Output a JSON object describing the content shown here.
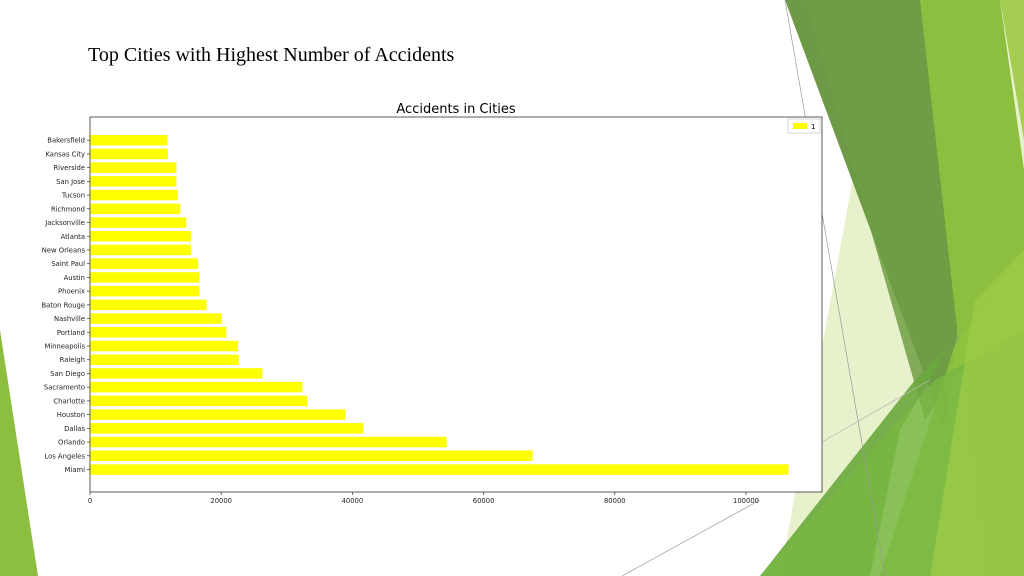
{
  "slide": {
    "title": "Top Cities with Highest Number of Accidents"
  },
  "theme": {
    "bar_color": "#ffff00",
    "green_dark": "#5e8f34",
    "green_mid": "#76b33f",
    "green_light": "#9bc94a",
    "green_pale": "#d6e8a8"
  },
  "chart_data": {
    "type": "bar",
    "orientation": "horizontal",
    "title": "Accidents in Cities",
    "xlabel": "",
    "ylabel": "",
    "legend": {
      "entries": [
        "1"
      ],
      "placement": "top-right"
    },
    "xlim": [
      0,
      110000
    ],
    "xticks": [
      0,
      20000,
      40000,
      60000,
      80000,
      100000
    ],
    "grid": false,
    "categories": [
      "Miami",
      "Los Angeles",
      "Orlando",
      "Dallas",
      "Houston",
      "Charlotte",
      "Sacramento",
      "San Diego",
      "Raleigh",
      "Minneapolis",
      "Portland",
      "Nashville",
      "Baton Rouge",
      "Phoenix",
      "Austin",
      "Saint Paul",
      "New Orleans",
      "Atlanta",
      "Jacksonville",
      "Richmond",
      "Tucson",
      "San Jose",
      "Riverside",
      "Kansas City",
      "Bakersfield"
    ],
    "series": [
      {
        "name": "1",
        "color": "#ffff00",
        "values": [
          106400,
          67400,
          54300,
          41600,
          38800,
          33000,
          32300,
          26200,
          22600,
          22500,
          20700,
          20000,
          17700,
          16600,
          16600,
          16400,
          15300,
          15300,
          14600,
          13700,
          13300,
          13100,
          13100,
          11800,
          11700
        ]
      }
    ]
  }
}
